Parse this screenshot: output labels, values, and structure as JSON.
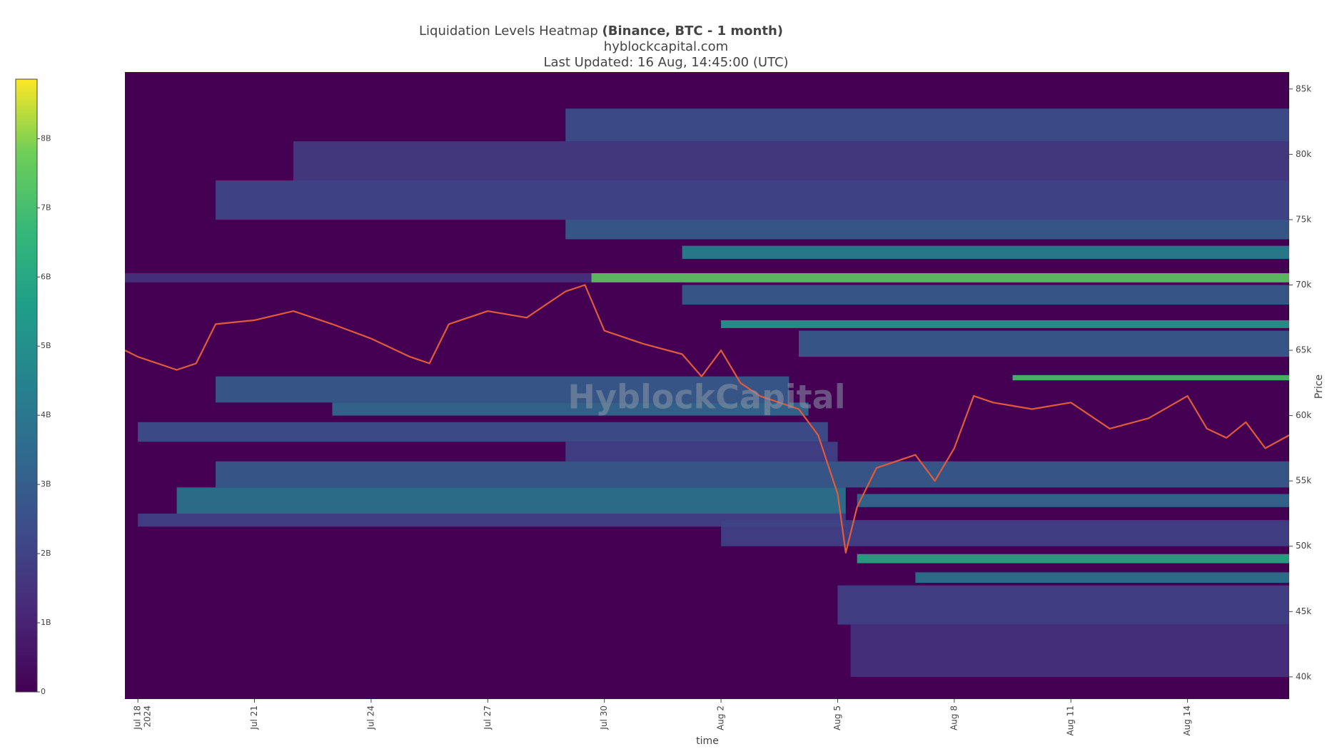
{
  "chart_data": {
    "type": "heatmap",
    "title": "Liquidation Levels Heatmap ",
    "title_bold": "(Binance, BTC - 1 month)",
    "subtitle": "hyblockcapital.com",
    "updated": "Last Updated: 16 Aug, 14:45:00 (UTC)",
    "watermark": "HyblockCapital",
    "x_label": "time",
    "y_label": "Price",
    "xlim": [
      "2024-07-17T16:00:00Z",
      "2024-08-16T14:45:00Z"
    ],
    "xticks": [
      {
        "value": "2024-07-18T00:00:00Z",
        "label": "Jul 18"
      },
      {
        "value": "2024-07-21T00:00:00Z",
        "label": "Jul 21"
      },
      {
        "value": "2024-07-24T00:00:00Z",
        "label": "Jul 24"
      },
      {
        "value": "2024-07-27T00:00:00Z",
        "label": "Jul 27"
      },
      {
        "value": "2024-07-30T00:00:00Z",
        "label": "Jul 30"
      },
      {
        "value": "2024-08-02T00:00:00Z",
        "label": "Aug 2"
      },
      {
        "value": "2024-08-05T00:00:00Z",
        "label": "Aug 5"
      },
      {
        "value": "2024-08-08T00:00:00Z",
        "label": "Aug 8"
      },
      {
        "value": "2024-08-11T00:00:00Z",
        "label": "Aug 11"
      },
      {
        "value": "2024-08-14T00:00:00Z",
        "label": "Aug 14"
      }
    ],
    "year_label": "2024",
    "ylim": [
      38300,
      86300
    ],
    "yticks": [
      {
        "value": 40000,
        "label": "40k"
      },
      {
        "value": 45000,
        "label": "45k"
      },
      {
        "value": 50000,
        "label": "50k"
      },
      {
        "value": 55000,
        "label": "55k"
      },
      {
        "value": 60000,
        "label": "60k"
      },
      {
        "value": 65000,
        "label": "65k"
      },
      {
        "value": 70000,
        "label": "70k"
      },
      {
        "value": 75000,
        "label": "75k"
      },
      {
        "value": 80000,
        "label": "80k"
      },
      {
        "value": 85000,
        "label": "85k"
      }
    ],
    "clim": [
      0,
      8860000000
    ],
    "cticks": [
      {
        "value": 0,
        "label": "0"
      },
      {
        "value": 1000000000,
        "label": "1B"
      },
      {
        "value": 2000000000,
        "label": "2B"
      },
      {
        "value": 3000000000,
        "label": "3B"
      },
      {
        "value": 4000000000,
        "label": "4B"
      },
      {
        "value": 5000000000,
        "label": "5B"
      },
      {
        "value": 6000000000,
        "label": "6B"
      },
      {
        "value": 7000000000,
        "label": "7B"
      },
      {
        "value": 8000000000,
        "label": "8B"
      }
    ],
    "colorscale": [
      [
        0,
        "#440154"
      ],
      [
        0.13,
        "#482878"
      ],
      [
        0.25,
        "#3e4989"
      ],
      [
        0.38,
        "#31688e"
      ],
      [
        0.5,
        "#26828e"
      ],
      [
        0.63,
        "#1f9e89"
      ],
      [
        0.75,
        "#35b779"
      ],
      [
        0.88,
        "#6ece58"
      ],
      [
        1,
        "#fde725"
      ]
    ],
    "bands": [
      {
        "price_low": 81000,
        "price_high": 83500,
        "start": "2024-07-29T00:00:00Z",
        "end": "2024-08-16T14:45:00Z",
        "value": 2500000000
      },
      {
        "price_low": 78000,
        "price_high": 81000,
        "start": "2024-07-22T00:00:00Z",
        "end": "2024-08-16T14:45:00Z",
        "value": 1800000000
      },
      {
        "price_low": 75000,
        "price_high": 78000,
        "start": "2024-07-20T00:00:00Z",
        "end": "2024-08-16T14:45:00Z",
        "value": 2200000000
      },
      {
        "price_low": 73500,
        "price_high": 75000,
        "start": "2024-07-29T00:00:00Z",
        "end": "2024-08-16T14:45:00Z",
        "value": 3000000000
      },
      {
        "price_low": 72000,
        "price_high": 73000,
        "start": "2024-08-01T00:00:00Z",
        "end": "2024-08-16T14:45:00Z",
        "value": 4500000000
      },
      {
        "price_low": 70200,
        "price_high": 70900,
        "start": "2024-07-17T16:00:00Z",
        "end": "2024-07-29T16:00:00Z",
        "value": 1500000000
      },
      {
        "price_low": 70200,
        "price_high": 70900,
        "start": "2024-07-29T16:00:00Z",
        "end": "2024-08-16T14:45:00Z",
        "value": 7500000000
      },
      {
        "price_low": 68500,
        "price_high": 70000,
        "start": "2024-08-01T00:00:00Z",
        "end": "2024-08-16T14:45:00Z",
        "value": 3000000000
      },
      {
        "price_low": 66700,
        "price_high": 67300,
        "start": "2024-08-02T00:00:00Z",
        "end": "2024-08-16T14:45:00Z",
        "value": 5500000000
      },
      {
        "price_low": 64500,
        "price_high": 66500,
        "start": "2024-08-04T00:00:00Z",
        "end": "2024-08-16T14:45:00Z",
        "value": 3000000000
      },
      {
        "price_low": 62700,
        "price_high": 63100,
        "start": "2024-08-09T12:00:00Z",
        "end": "2024-08-16T14:45:00Z",
        "value": 7000000000
      },
      {
        "price_low": 61000,
        "price_high": 63000,
        "start": "2024-07-20T00:00:00Z",
        "end": "2024-08-03T18:00:00Z",
        "value": 3000000000
      },
      {
        "price_low": 60000,
        "price_high": 61000,
        "start": "2024-07-23T00:00:00Z",
        "end": "2024-08-04T06:00:00Z",
        "value": 3500000000
      },
      {
        "price_low": 58000,
        "price_high": 59500,
        "start": "2024-07-18T00:00:00Z",
        "end": "2024-08-04T18:00:00Z",
        "value": 2500000000
      },
      {
        "price_low": 56500,
        "price_high": 58000,
        "start": "2024-07-29T00:00:00Z",
        "end": "2024-08-05T00:00:00Z",
        "value": 2000000000
      },
      {
        "price_low": 54500,
        "price_high": 56500,
        "start": "2024-07-20T00:00:00Z",
        "end": "2024-08-16T14:45:00Z",
        "value": 3000000000
      },
      {
        "price_low": 52500,
        "price_high": 54500,
        "start": "2024-07-19T00:00:00Z",
        "end": "2024-08-05T05:00:00Z",
        "value": 4000000000
      },
      {
        "price_low": 51500,
        "price_high": 52500,
        "start": "2024-07-18T00:00:00Z",
        "end": "2024-08-05T05:00:00Z",
        "value": 2000000000
      },
      {
        "price_low": 50000,
        "price_high": 52000,
        "start": "2024-08-02T00:00:00Z",
        "end": "2024-08-16T14:45:00Z",
        "value": 2000000000
      },
      {
        "price_low": 53000,
        "price_high": 54000,
        "start": "2024-08-05T12:00:00Z",
        "end": "2024-08-16T14:45:00Z",
        "value": 3500000000
      },
      {
        "price_low": 48700,
        "price_high": 49400,
        "start": "2024-08-05T12:00:00Z",
        "end": "2024-08-16T14:45:00Z",
        "value": 6000000000
      },
      {
        "price_low": 47200,
        "price_high": 48000,
        "start": "2024-08-07T00:00:00Z",
        "end": "2024-08-16T14:45:00Z",
        "value": 4000000000
      },
      {
        "price_low": 44000,
        "price_high": 47000,
        "start": "2024-08-05T00:00:00Z",
        "end": "2024-08-16T14:45:00Z",
        "value": 2000000000
      },
      {
        "price_low": 40000,
        "price_high": 44000,
        "start": "2024-08-05T08:00:00Z",
        "end": "2024-08-16T14:45:00Z",
        "value": 1500000000
      }
    ],
    "price": {
      "color": "#e05a3c",
      "x": [
        "2024-07-17T16:00:00Z",
        "2024-07-18T00:00:00Z",
        "2024-07-19T00:00:00Z",
        "2024-07-19T12:00:00Z",
        "2024-07-20T00:00:00Z",
        "2024-07-21T00:00:00Z",
        "2024-07-22T00:00:00Z",
        "2024-07-23T00:00:00Z",
        "2024-07-24T00:00:00Z",
        "2024-07-25T00:00:00Z",
        "2024-07-25T12:00:00Z",
        "2024-07-26T00:00:00Z",
        "2024-07-27T00:00:00Z",
        "2024-07-28T00:00:00Z",
        "2024-07-29T00:00:00Z",
        "2024-07-29T12:00:00Z",
        "2024-07-30T00:00:00Z",
        "2024-07-31T00:00:00Z",
        "2024-08-01T00:00:00Z",
        "2024-08-01T12:00:00Z",
        "2024-08-02T00:00:00Z",
        "2024-08-02T12:00:00Z",
        "2024-08-03T00:00:00Z",
        "2024-08-04T00:00:00Z",
        "2024-08-04T12:00:00Z",
        "2024-08-05T00:00:00Z",
        "2024-08-05T05:00:00Z",
        "2024-08-05T12:00:00Z",
        "2024-08-06T00:00:00Z",
        "2024-08-07T00:00:00Z",
        "2024-08-07T12:00:00Z",
        "2024-08-08T00:00:00Z",
        "2024-08-08T12:00:00Z",
        "2024-08-09T00:00:00Z",
        "2024-08-10T00:00:00Z",
        "2024-08-11T00:00:00Z",
        "2024-08-12T00:00:00Z",
        "2024-08-13T00:00:00Z",
        "2024-08-14T00:00:00Z",
        "2024-08-14T12:00:00Z",
        "2024-08-15T00:00:00Z",
        "2024-08-15T12:00:00Z",
        "2024-08-16T00:00:00Z",
        "2024-08-16T14:45:00Z"
      ],
      "values": [
        65000,
        64500,
        63500,
        64000,
        67000,
        67300,
        68000,
        67000,
        65900,
        64500,
        64000,
        67000,
        68000,
        67500,
        69500,
        70000,
        66500,
        65500,
        64700,
        63000,
        65000,
        62500,
        61500,
        60500,
        58500,
        54000,
        49500,
        53000,
        56000,
        57000,
        55000,
        57500,
        61500,
        61000,
        60500,
        61000,
        59000,
        59800,
        61500,
        59000,
        58300,
        59500,
        57500,
        58500
      ]
    }
  }
}
